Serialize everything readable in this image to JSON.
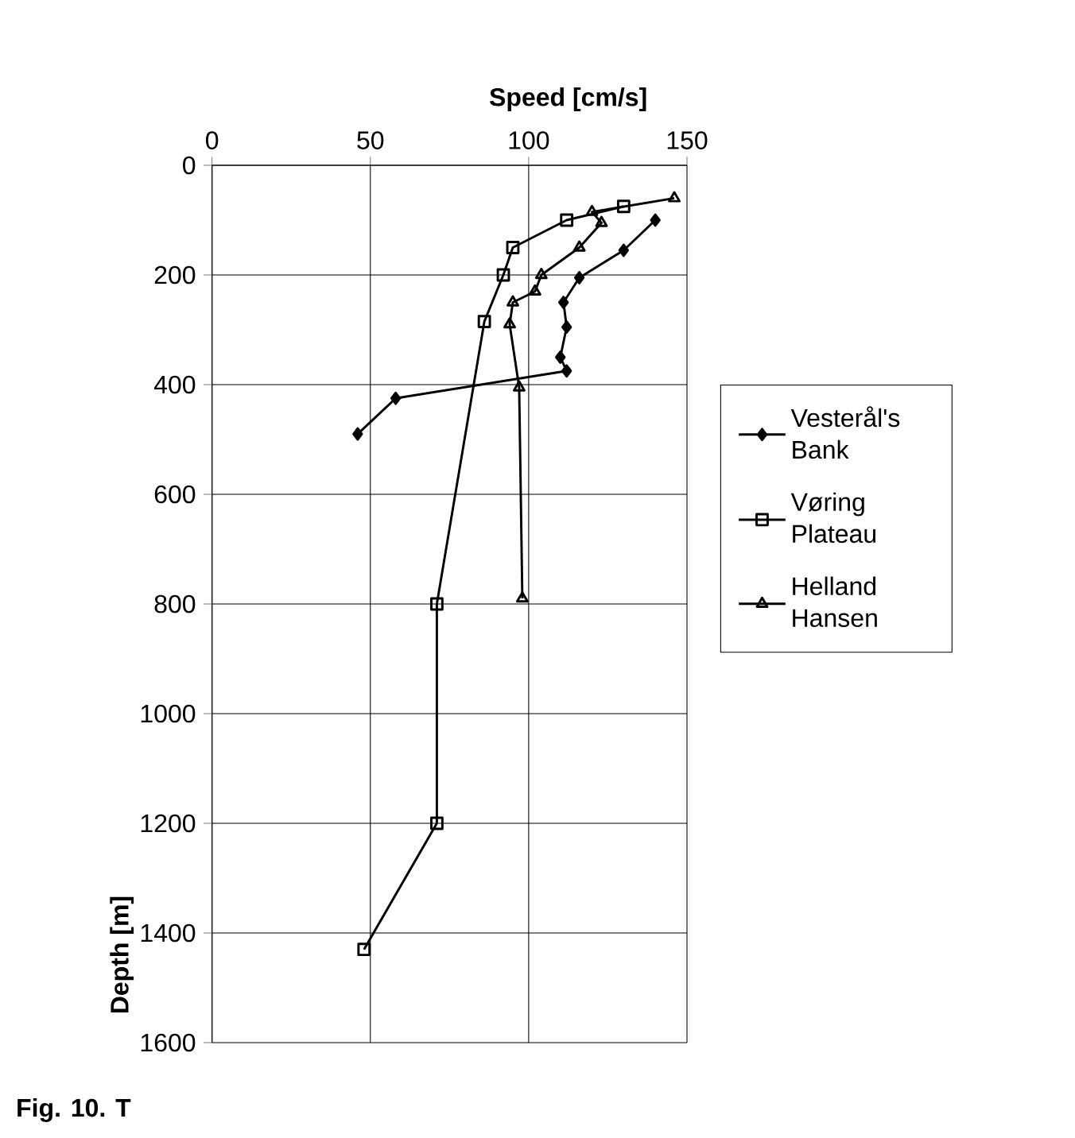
{
  "chart_data": {
    "type": "line",
    "xlabel": "Speed [cm/s]",
    "ylabel": "Depth [m]",
    "xlim": [
      0,
      150
    ],
    "xticks": [
      0,
      50,
      100,
      150
    ],
    "ylim": [
      1600,
      0
    ],
    "yticks": [
      0,
      200,
      400,
      600,
      800,
      1000,
      1200,
      1400,
      1600
    ],
    "grid": true,
    "legend": "right",
    "line_style": "solid",
    "series": [
      {
        "name": "Vesterål's Bank",
        "color": "#000000",
        "marker": "diamond",
        "x": [
          140,
          130,
          116,
          111,
          112,
          110,
          112,
          58,
          46
        ],
        "values": [
          100,
          155,
          205,
          250,
          295,
          350,
          375,
          425,
          490
        ]
      },
      {
        "name": "Vøring Plateau",
        "color": "#000000",
        "marker": "square",
        "x": [
          130,
          112,
          95,
          92,
          86,
          71,
          71,
          48
        ],
        "values": [
          75,
          100,
          150,
          200,
          285,
          800,
          1200,
          1430
        ]
      },
      {
        "name": "Helland Hansen",
        "color": "#000000",
        "marker": "triangle",
        "x": [
          146,
          120,
          123,
          116,
          104,
          102,
          95,
          94,
          97,
          98
        ],
        "values": [
          60,
          85,
          105,
          150,
          200,
          230,
          250,
          290,
          405,
          790
        ]
      }
    ],
    "annotations": [
      "Fig. 10. T"
    ]
  }
}
